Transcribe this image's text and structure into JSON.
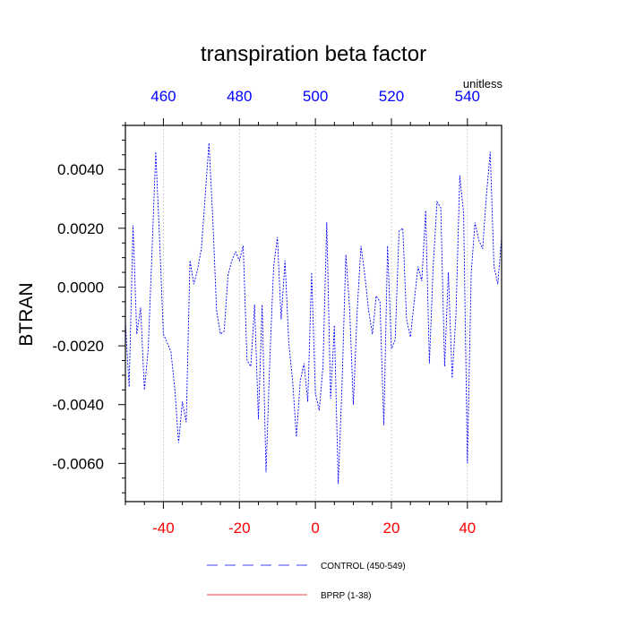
{
  "chart_data": {
    "type": "line",
    "title": "transpiration beta factor",
    "units_label": "unitless",
    "ylabel": "BTRAN",
    "xlabel": "",
    "xlim": [
      -50,
      49
    ],
    "ylim": [
      -0.0073,
      0.0055
    ],
    "top_axis_offset": 500,
    "xticks_bottom": [
      -40,
      -20,
      0,
      20,
      40
    ],
    "xtick_labels_bottom": [
      "-40",
      "-20",
      "0",
      "20",
      "40"
    ],
    "xtick_labels_top": [
      "460",
      "480",
      "500",
      "520",
      "540"
    ],
    "yticks": [
      0.004,
      0.002,
      0.0,
      -0.002,
      -0.004,
      -0.006
    ],
    "ytick_labels": [
      "0.0040",
      "0.0020",
      "0.0000",
      "-0.0020",
      "-0.0040",
      "-0.0060"
    ],
    "grid": "vertical dotted lines at bottom x ticks",
    "colors": {
      "control": "#0000ff",
      "bprp": "#ff0000",
      "xtick_bottom": "#ff0000",
      "xtick_top": "#0000ff"
    },
    "legend": {
      "placement": "bottom",
      "entries": [
        {
          "label": "CONTROL (450-549)",
          "color": "#0000ff",
          "style": "dashed"
        },
        {
          "label": "BPRP (1-38)",
          "color": "#ff0000",
          "style": "solid"
        }
      ]
    },
    "series": [
      {
        "name": "CONTROL (450-549)",
        "color": "#0000ff",
        "x": [
          -50,
          -49,
          -48,
          -47,
          -46,
          -45,
          -44,
          -43,
          -42,
          -41,
          -40,
          -39,
          -38,
          -37,
          -36,
          -35,
          -34,
          -33,
          -32,
          -31,
          -30,
          -29,
          -28,
          -27,
          -26,
          -25,
          -24,
          -23,
          -22,
          -21,
          -20,
          -19,
          -18,
          -17,
          -16,
          -15,
          -14,
          -13,
          -12,
          -11,
          -10,
          -9,
          -8,
          -7,
          -6,
          -5,
          -4,
          -3,
          -2,
          -1,
          0,
          1,
          2,
          3,
          4,
          5,
          6,
          7,
          8,
          9,
          10,
          11,
          12,
          13,
          14,
          15,
          16,
          17,
          18,
          19,
          20,
          21,
          22,
          23,
          24,
          25,
          26,
          27,
          28,
          29,
          30,
          31,
          32,
          33,
          34,
          35,
          36,
          37,
          38,
          39,
          40,
          41,
          42,
          43,
          44,
          45,
          46,
          47,
          48,
          49
        ],
        "y": [
          -0.0012,
          -0.0034,
          0.0021,
          -0.0016,
          -0.0007,
          -0.0035,
          -0.0021,
          0.0012,
          0.0046,
          0.0016,
          -0.0016,
          -0.0019,
          -0.0022,
          -0.0035,
          -0.0053,
          -0.0039,
          -0.0046,
          0.0009,
          0.0001,
          0.0006,
          0.0013,
          0.0031,
          0.0049,
          0.0023,
          -0.0008,
          -0.0016,
          -0.0015,
          0.0004,
          0.0009,
          0.0012,
          0.0009,
          0.0014,
          -0.0025,
          -0.0027,
          -0.0006,
          -0.0045,
          -0.0006,
          -0.0063,
          -0.0025,
          0.0007,
          0.0017,
          -0.0011,
          0.0009,
          -0.0019,
          -0.0032,
          -0.0051,
          -0.0032,
          -0.0026,
          -0.0039,
          0.0005,
          -0.0036,
          -0.0042,
          -0.0027,
          0.0022,
          -0.0038,
          -0.0013,
          -0.0067,
          -0.0034,
          0.0011,
          -0.0007,
          -0.004,
          -0.0008,
          0.0014,
          0.0004,
          -0.0008,
          -0.0016,
          -0.0003,
          -0.0005,
          -0.0047,
          0.0014,
          -0.0021,
          -0.0018,
          0.0019,
          0.002,
          -0.0011,
          -0.0017,
          -0.0005,
          0.0007,
          0.0002,
          0.0026,
          -0.0026,
          0.0007,
          0.0029,
          0.0027,
          -0.0027,
          0.0005,
          -0.0031,
          -0.0009,
          0.0038,
          0.0025,
          -0.006,
          0.0005,
          0.0022,
          0.0016,
          0.0013,
          0.0031,
          0.0046,
          0.0007,
          0.0001,
          0.0017
        ]
      },
      {
        "name": "BPRP (1-38)",
        "color": "#ff0000",
        "x": [],
        "y": []
      }
    ]
  }
}
